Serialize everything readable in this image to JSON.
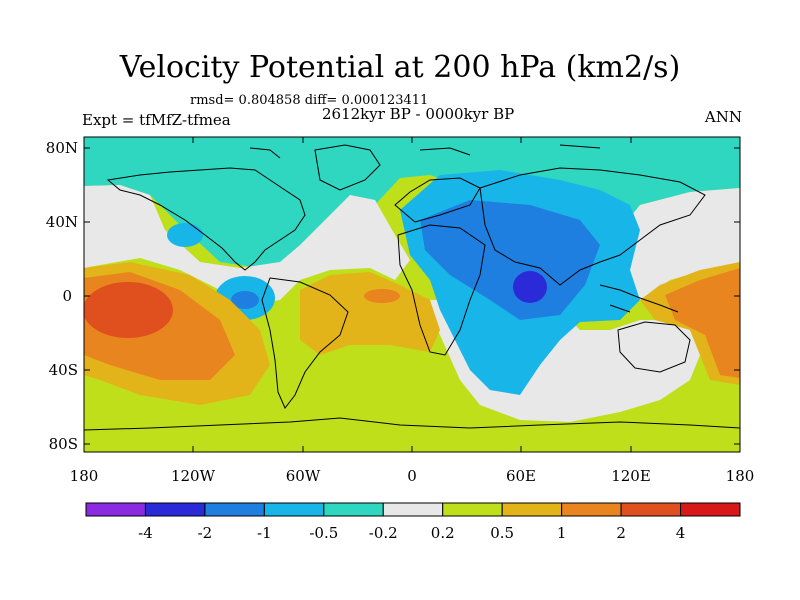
{
  "header": {
    "title": "Velocity Potential at 200 hPa (km2/s)",
    "stats": "rmsd= 0.804858 diff= 0.000123411",
    "experiment": "Expt = tfMfZ-tfmea",
    "period": "2612kyr BP - 0000kyr BP",
    "season": "ANN"
  },
  "axes": {
    "y_ticks": [
      "80N",
      "40N",
      "0",
      "40S",
      "80S"
    ],
    "x_ticks": [
      "180",
      "120W",
      "60W",
      "0",
      "60E",
      "120E",
      "180"
    ]
  },
  "colorbar": {
    "colors": [
      "#8a2be2",
      "#2a2ad8",
      "#1e7fe0",
      "#18b6e8",
      "#2fd6c0",
      "#e8e8e8",
      "#bfdf1a",
      "#e2b41a",
      "#e8851e",
      "#e0501e",
      "#d81818"
    ],
    "labels": [
      "-4",
      "-2",
      "-1",
      "-0.5",
      "-0.2",
      "0.2",
      "0.5",
      "1",
      "2",
      "4"
    ]
  },
  "map_colors": {
    "teal": "#2fd6c0",
    "white": "#e8e8e8",
    "lightblue": "#18b6e8",
    "blue": "#1e7fe0",
    "darkblue": "#2a2ad8",
    "green": "#bfdf1a",
    "yellow": "#e2b41a",
    "orange": "#e8851e",
    "redorange": "#e0501e",
    "coast": "#000000"
  }
}
